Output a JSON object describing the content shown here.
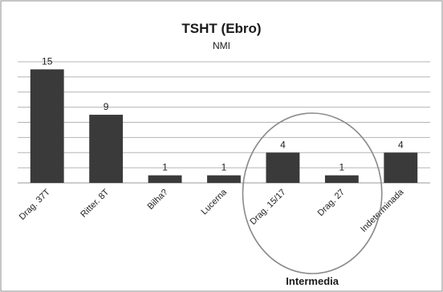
{
  "chart_data": {
    "type": "bar",
    "title": "TSHT (Ebro)",
    "subtitle": "NMI",
    "xlabel": "",
    "ylabel": "",
    "categories": [
      "Drag. 37T",
      "Ritter. 8T",
      "Bilha?",
      "Lucerna",
      "Drag. 15/17",
      "Drag. 27",
      "Indeterminada"
    ],
    "values": [
      15,
      9,
      1,
      1,
      4,
      1,
      4
    ],
    "ylim": [
      0,
      16
    ],
    "grid": true,
    "legend": "none",
    "bar_color": "#3a3a3a",
    "annotations": [
      {
        "type": "ellipse",
        "label": "Intermedia",
        "covers": [
          "Drag. 15/17",
          "Drag. 27"
        ]
      }
    ]
  }
}
